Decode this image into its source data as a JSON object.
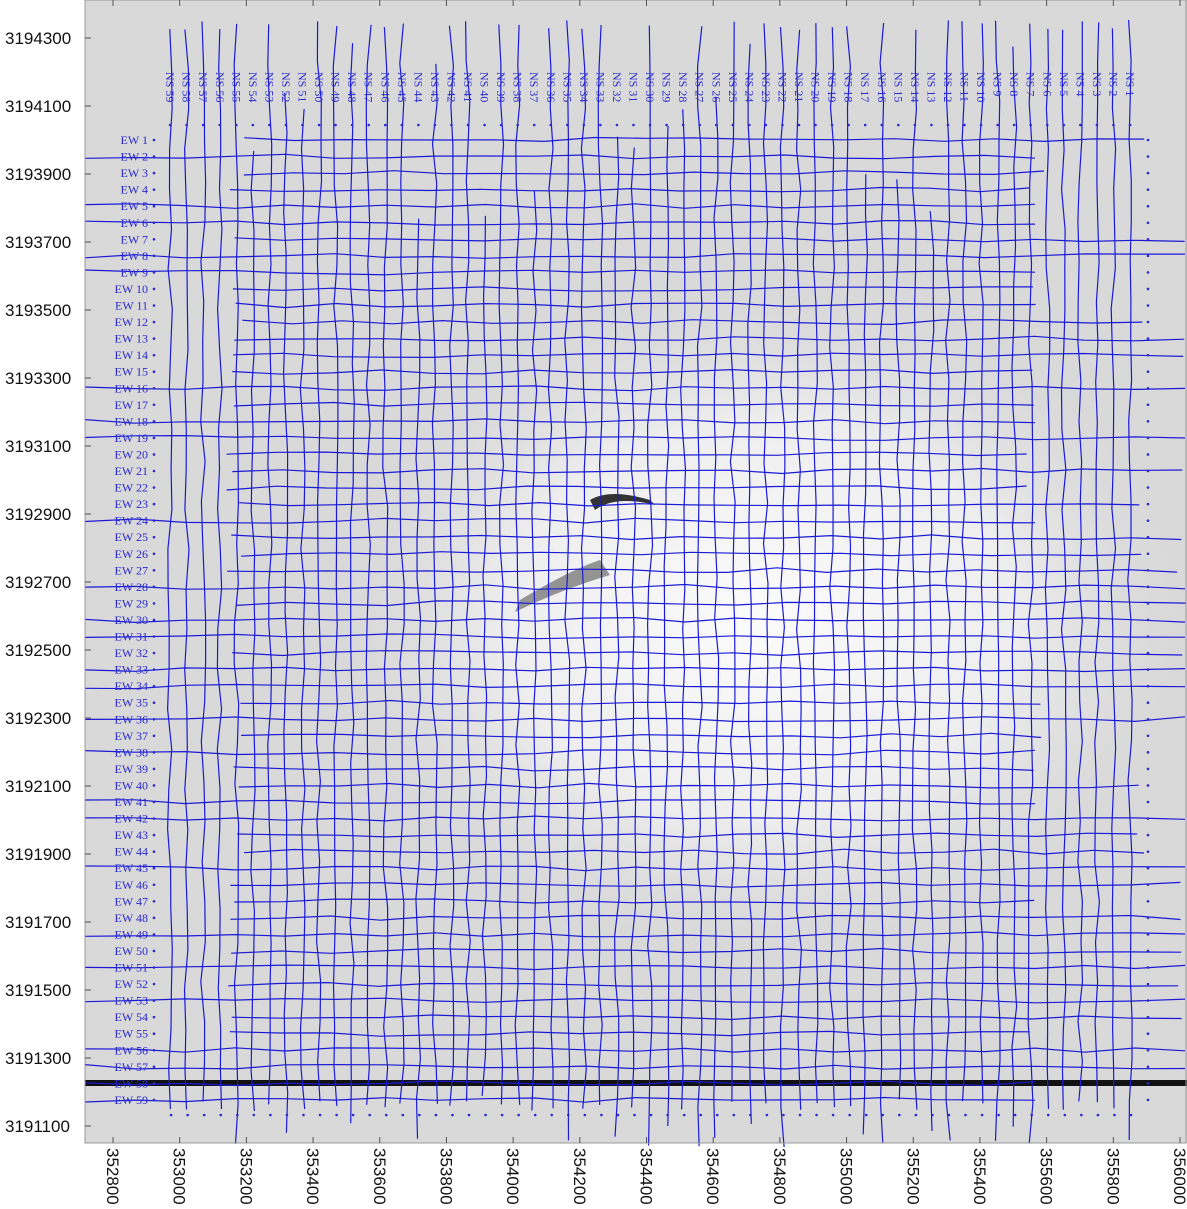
{
  "x_axis": {
    "ticks": [
      352800,
      353000,
      353200,
      353400,
      353600,
      353800,
      354000,
      354200,
      354400,
      354600,
      354800,
      355000,
      355200,
      355400,
      355600,
      355800,
      356000
    ]
  },
  "y_axis": {
    "ticks": [
      3194300,
      3194100,
      3193900,
      3193700,
      3193500,
      3193300,
      3193100,
      3192900,
      3192700,
      3192500,
      3192300,
      3192100,
      3191900,
      3191700,
      3191500,
      3191300,
      3191100
    ]
  },
  "ns_lines": [
    "NS 1",
    "NS 2",
    "NS 3",
    "NS 4",
    "NS 5",
    "NS 6",
    "NS 7",
    "NS 8",
    "NS 9",
    "NS 10",
    "NS 11",
    "NS 12",
    "NS 13",
    "NS 14",
    "NS 15",
    "NS 16",
    "NS 17",
    "NS 18",
    "NS 19",
    "NS 20",
    "NS 21",
    "NS 22",
    "NS 23",
    "NS 24",
    "NS 25",
    "NS 26",
    "NS 27",
    "NS 28",
    "NS 29",
    "NS 30",
    "NS 31",
    "NS 32",
    "NS 33",
    "NS 34",
    "NS 35",
    "NS 36",
    "NS 37",
    "NS 38",
    "NS 39",
    "NS 40",
    "NS 41",
    "NS 42",
    "NS 43",
    "NS 44",
    "NS 45",
    "NS 46",
    "NS 47",
    "NS 48",
    "NS 49",
    "NS 50",
    "NS 51",
    "NS 52",
    "NS 53",
    "NS 54",
    "NS 55",
    "NS 56",
    "NS 57",
    "NS 58",
    "NS 59"
  ],
  "ew_lines": [
    "EW 1",
    "EW 2",
    "EW 3",
    "EW 4",
    "EW 5",
    "EW 6",
    "EW 7",
    "EW 8",
    "EW 9",
    "EW 10",
    "EW 11",
    "EW 12",
    "EW 13",
    "EW 14",
    "EW 15",
    "EW 16",
    "EW 17",
    "EW 18",
    "EW 19",
    "EW 20",
    "EW 21",
    "EW 22",
    "EW 23",
    "EW 24",
    "EW 25",
    "EW 26",
    "EW 27",
    "EW 28",
    "EW 29",
    "EW 30",
    "EW 31",
    "EW 32",
    "EW 33",
    "EW 34",
    "EW 35",
    "EW 36",
    "EW 37",
    "EW 38",
    "EW 39",
    "EW 40",
    "EW 41",
    "EW 42",
    "EW 43",
    "EW 44",
    "EW 45",
    "EW 46",
    "EW 47",
    "EW 48",
    "EW 49",
    "EW 50",
    "EW 51",
    "EW 52",
    "EW 53",
    "EW 54",
    "EW 55",
    "EW 56",
    "EW 57",
    "EW 58",
    "EW 59"
  ]
}
